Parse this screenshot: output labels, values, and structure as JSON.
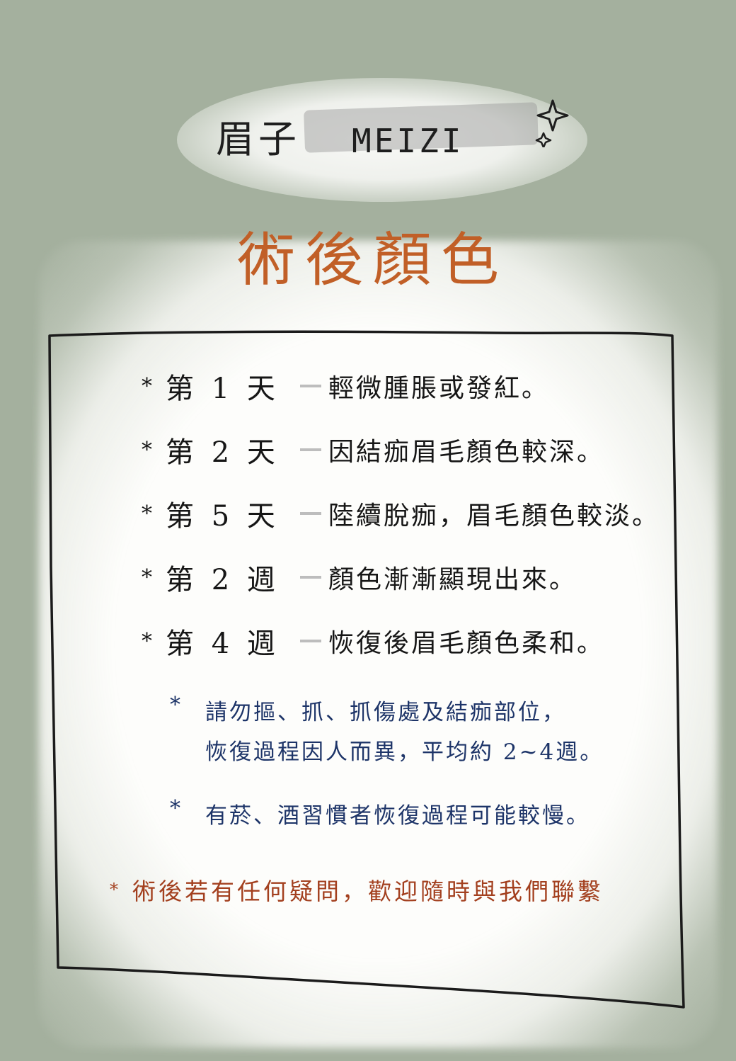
{
  "brand": {
    "name_zh": "眉子",
    "name_en": "MEIZI"
  },
  "title": "術後顏色",
  "days": [
    {
      "star": "*",
      "period": "第 1 天",
      "desc": "輕微腫脹或發紅。"
    },
    {
      "star": "*",
      "period": "第 2 天",
      "desc": "因結痂眉毛顏色較深。"
    },
    {
      "star": "*",
      "period": "第 5 天",
      "desc": "陸續脫痂，眉毛顏色較淡。"
    },
    {
      "star": "*",
      "period": "第 2 週",
      "desc": "顏色漸漸顯現出來。"
    },
    {
      "star": "*",
      "period": "第 4 週",
      "desc": "恢復後眉毛顏色柔和。"
    }
  ],
  "notes": [
    {
      "star": "*",
      "line1": "請勿摳、抓、抓傷處及結痂部位，",
      "line2": "恢復過程因人而異，平均約 2~4週。"
    },
    {
      "star": "*",
      "line1": "有菸、酒習慣者恢復過程可能較慢。",
      "line2": ""
    }
  ],
  "footer": {
    "star": "*",
    "text": "術後若有任何疑問，歡迎隨時與我們聯繫"
  },
  "colors": {
    "background": "#a4b09e",
    "title": "#c15f27",
    "note_text": "#1d3468",
    "footer_text": "#a3401f",
    "ink": "#161616"
  },
  "icons": {
    "sparkle": "sparkle-icon",
    "bullet": "asterisk-icon"
  }
}
